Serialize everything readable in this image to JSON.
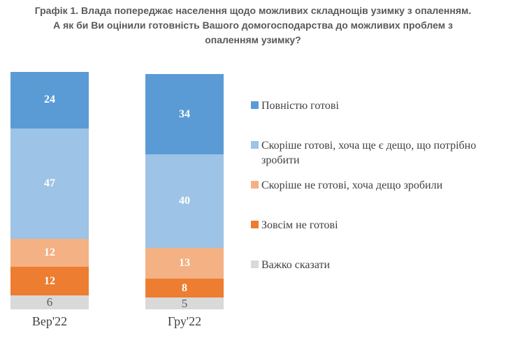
{
  "title_lines": [
    "Графік 1. Влада попереджає населення щодо можливих складнощів узимку з опаленням.",
    "А як би Ви оцінили готовність Вашого домогосподарства до можливих проблем з",
    "опаленням узимку?"
  ],
  "chart_data": {
    "type": "bar",
    "stacked": true,
    "orientation": "vertical",
    "categories": [
      "Вер'22",
      "Гру'22"
    ],
    "series": [
      {
        "name": "Повністю готові",
        "values": [
          24,
          34
        ],
        "color": "#5B9BD5",
        "label_color": "#FFFFFF"
      },
      {
        "name": "Скоріше готові, хоча ще є дещо, що потрібно зробити",
        "values": [
          47,
          40
        ],
        "color": "#9DC3E6",
        "label_color": "#FFFFFF"
      },
      {
        "name": "Скоріше не готові, хоча дещо зробили",
        "values": [
          12,
          13
        ],
        "color": "#F4B183",
        "label_color": "#FFFFFF"
      },
      {
        "name": "Зовсім не готові",
        "values": [
          12,
          8
        ],
        "color": "#ED7D31",
        "label_color": "#FFFFFF"
      },
      {
        "name": "Важко сказати",
        "values": [
          6,
          5
        ],
        "color": "#D9D9D9",
        "label_color": "#595959"
      }
    ],
    "legend_position": "right",
    "value_labels": "inside-center",
    "title_color": "#595959",
    "text_color": "#404040"
  }
}
